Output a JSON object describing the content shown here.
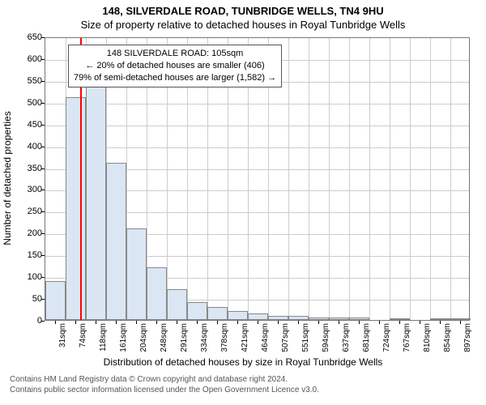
{
  "header": {
    "title_line1": "148, SILVERDALE ROAD, TUNBRIDGE WELLS, TN4 9HU",
    "title_line2": "Size of property relative to detached houses in Royal Tunbridge Wells"
  },
  "chart": {
    "type": "histogram",
    "ylabel": "Number of detached properties",
    "xlabel": "Distribution of detached houses by size in Royal Tunbridge Wells",
    "ylim": [
      0,
      650
    ],
    "yticks": [
      0,
      50,
      100,
      150,
      200,
      250,
      300,
      350,
      400,
      450,
      500,
      550,
      600,
      650
    ],
    "xticks": [
      "31sqm",
      "74sqm",
      "118sqm",
      "161sqm",
      "204sqm",
      "248sqm",
      "291sqm",
      "334sqm",
      "378sqm",
      "421sqm",
      "464sqm",
      "507sqm",
      "551sqm",
      "594sqm",
      "637sqm",
      "681sqm",
      "724sqm",
      "767sqm",
      "810sqm",
      "854sqm",
      "897sqm"
    ],
    "bars": [
      90,
      510,
      560,
      360,
      210,
      120,
      70,
      40,
      30,
      20,
      15,
      10,
      10,
      5,
      5,
      5,
      0,
      3,
      0,
      3,
      2
    ],
    "bar_fill": "#dbe6f4",
    "bar_border": "#888888",
    "grid_color": "#cccccc",
    "background_color": "#ffffff",
    "axis_color": "#777777",
    "marker_index": 1.72,
    "marker_color": "#ff0000"
  },
  "annotation": {
    "line1": "148 SILVERDALE ROAD: 105sqm",
    "line2": "← 20% of detached houses are smaller (406)",
    "line3": "79% of semi-detached houses are larger (1,582) →"
  },
  "footnote": {
    "line1": "Contains HM Land Registry data © Crown copyright and database right 2024.",
    "line2": "Contains public sector information licensed under the Open Government Licence v3.0."
  }
}
